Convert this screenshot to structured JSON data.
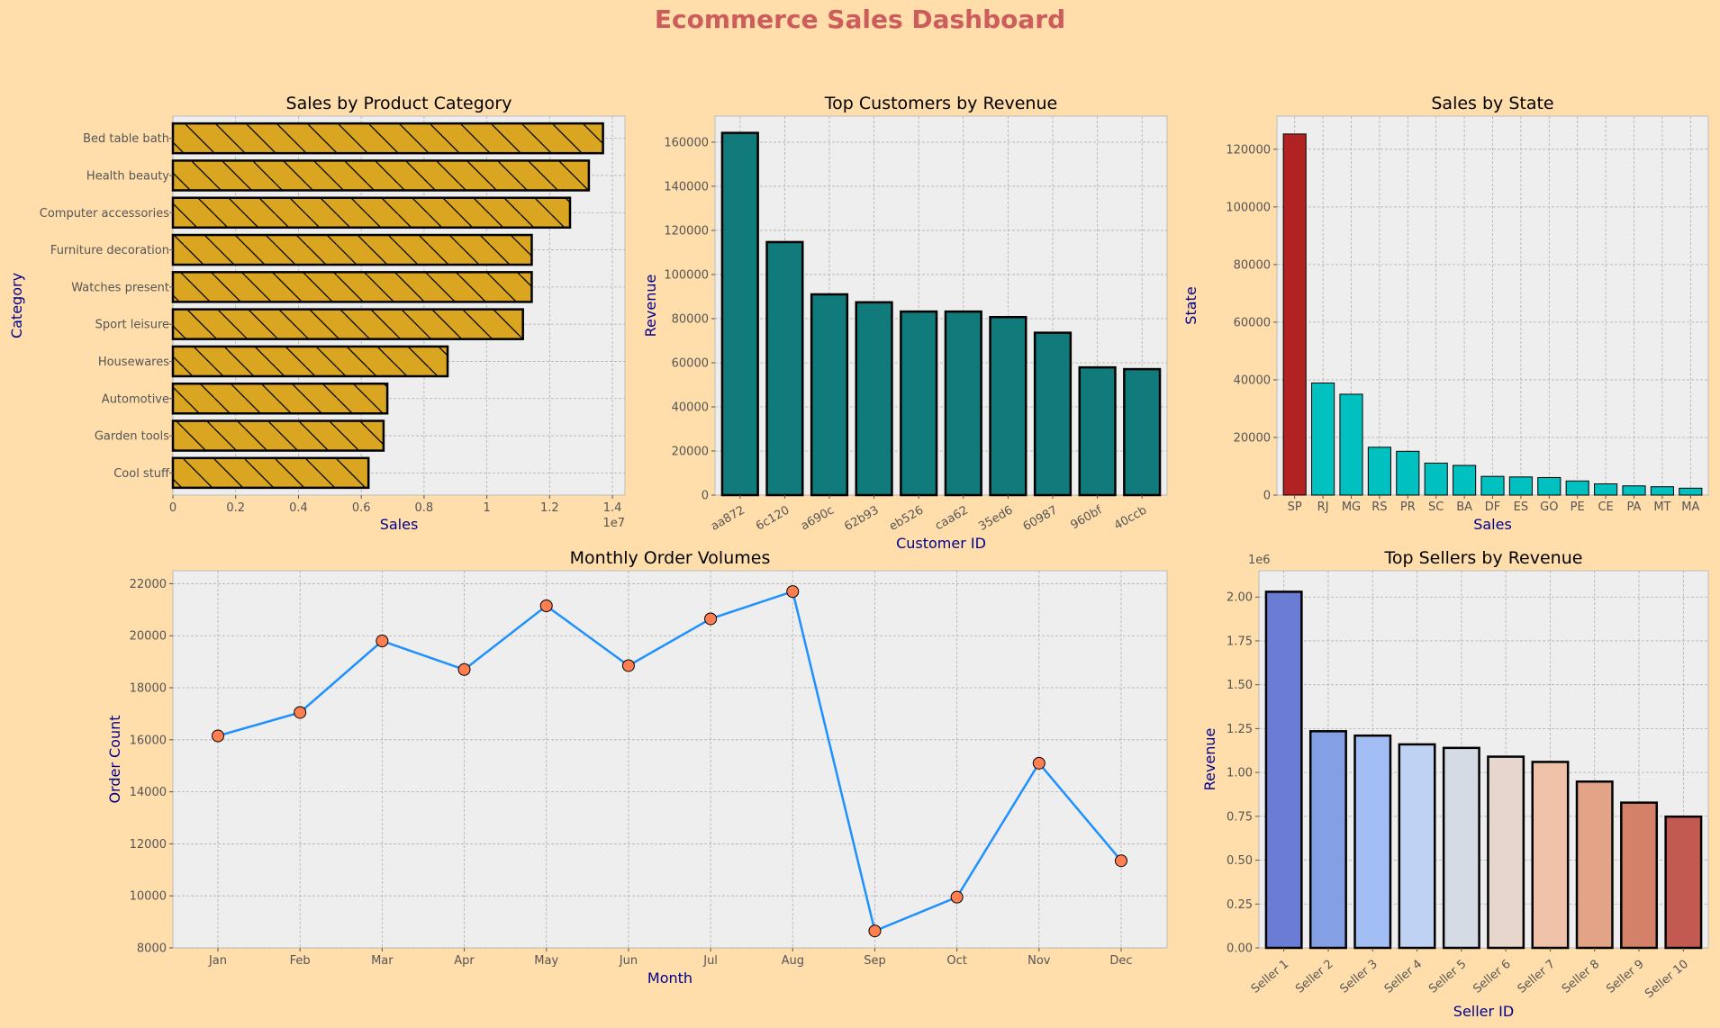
{
  "dashboard": {
    "title": "Ecommerce Sales Dashboard",
    "title_color": "#cd5c5c",
    "background": "#ffdeab",
    "panel_background": "#eeeeee"
  },
  "chart_data": [
    {
      "id": "category",
      "type": "bar",
      "orientation": "horizontal",
      "title": "Sales by Product Category",
      "xlabel": "Sales",
      "ylabel": "Category",
      "x_offset_label": "1e7",
      "xlim": [
        0,
        14400000
      ],
      "xticks": [
        0,
        0.2,
        0.4,
        0.6,
        0.8,
        1.0,
        1.2,
        1.4
      ],
      "categories": [
        "Bed table bath",
        "Health beauty",
        "Computer accessories",
        "Furniture decoration",
        "Watches present",
        "Sport leisure",
        "Housewares",
        "Automotive",
        "Garden tools",
        "Cool stuff"
      ],
      "values": [
        13700000,
        13250000,
        12650000,
        11430000,
        11430000,
        11150000,
        8750000,
        6830000,
        6710000,
        6230000
      ],
      "color": "#daa520",
      "hatch": "diagonal",
      "grid": true
    },
    {
      "id": "customers",
      "type": "bar",
      "title": "Top Customers by Revenue",
      "xlabel": "Customer ID",
      "ylabel": "Revenue",
      "ylim": [
        0,
        171800
      ],
      "yticks": [
        0,
        20000,
        40000,
        60000,
        80000,
        100000,
        120000,
        140000,
        160000
      ],
      "categories": [
        "aa872",
        "6c120",
        "a690c",
        "62b93",
        "eb526",
        "caa62",
        "35ed6",
        "60987",
        "960bf",
        "40ccb"
      ],
      "values": [
        164200,
        114700,
        91000,
        87400,
        83200,
        83200,
        80700,
        73600,
        57900,
        57100
      ],
      "color": "#117a7a",
      "grid": true
    },
    {
      "id": "states",
      "type": "bar",
      "title": "Sales by State",
      "xlabel": "Sales",
      "ylabel": "State",
      "ylim": [
        0,
        131500
      ],
      "yticks": [
        0,
        20000,
        40000,
        60000,
        80000,
        100000,
        120000
      ],
      "categories": [
        "SP",
        "RJ",
        "MG",
        "RS",
        "PR",
        "SC",
        "BA",
        "DF",
        "ES",
        "GO",
        "PE",
        "CE",
        "PA",
        "MT",
        "MA"
      ],
      "values": [
        125300,
        38900,
        35000,
        16600,
        15200,
        11100,
        10300,
        6500,
        6300,
        6100,
        4900,
        3900,
        3200,
        2900,
        2400
      ],
      "colors": [
        "#b22222",
        "#00c0c0",
        "#00c0c0",
        "#00c0c0",
        "#00c0c0",
        "#00c0c0",
        "#00c0c0",
        "#00c0c0",
        "#00c0c0",
        "#00c0c0",
        "#00c0c0",
        "#00c0c0",
        "#00c0c0",
        "#00c0c0",
        "#00c0c0"
      ],
      "grid": true
    },
    {
      "id": "monthly",
      "type": "line",
      "title": "Monthly Order Volumes",
      "xlabel": "Month",
      "ylabel": "Order Count",
      "ylim": [
        8000,
        22500
      ],
      "yticks": [
        8000,
        10000,
        12000,
        14000,
        16000,
        18000,
        20000,
        22000
      ],
      "categories": [
        "Jan",
        "Feb",
        "Mar",
        "Apr",
        "May",
        "Jun",
        "Jul",
        "Aug",
        "Sep",
        "Oct",
        "Nov",
        "Dec"
      ],
      "values": [
        16150,
        17050,
        19800,
        18700,
        21150,
        18850,
        20650,
        21700,
        8650,
        9950,
        15100,
        11350
      ],
      "line_color": "#1e90ff",
      "marker_color": "#ff7f50",
      "grid": true
    },
    {
      "id": "sellers",
      "type": "bar",
      "title": "Top Sellers by Revenue",
      "xlabel": "Seller ID",
      "ylabel": "Revenue",
      "y_offset_label": "1e6",
      "ylim": [
        0,
        2150000
      ],
      "yticks": [
        0,
        0.25,
        0.5,
        0.75,
        1.0,
        1.25,
        1.5,
        1.75,
        2.0
      ],
      "ytick_labels": [
        "0.00",
        "0.25",
        "0.50",
        "0.75",
        "1.00",
        "1.25",
        "1.50",
        "1.75",
        "2.00"
      ],
      "categories": [
        "Seller 1",
        "Seller 2",
        "Seller 3",
        "Seller 4",
        "Seller 5",
        "Seller 6",
        "Seller 7",
        "Seller 8",
        "Seller 9",
        "Seller 10"
      ],
      "values": [
        2030000,
        1235000,
        1210000,
        1160000,
        1140000,
        1090000,
        1060000,
        948000,
        828000,
        748000
      ],
      "colors": [
        "#6b7cd4",
        "#849fe4",
        "#a3bef4",
        "#bfd2f4",
        "#d5dbe4",
        "#e6d6cc",
        "#eec1a8",
        "#e3a386",
        "#d38269",
        "#c25a52"
      ],
      "grid": true
    }
  ]
}
